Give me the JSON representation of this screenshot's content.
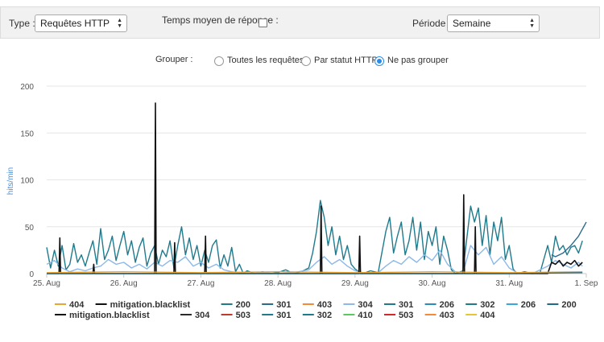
{
  "toolbar": {
    "type_label": "Type :",
    "type_value": "Requêtes HTTP",
    "avg_label": "Temps moyen de réponse :",
    "avg_checked": false,
    "period_label": "Période :",
    "period_value": "Semaine"
  },
  "group": {
    "label": "Grouper :",
    "options": [
      "Toutes les requêtes",
      "Par statut HTTP",
      "Ne pas grouper"
    ],
    "selected": 2
  },
  "chart_data": {
    "type": "line",
    "ylabel": "hits/min",
    "ylim": [
      0,
      200
    ],
    "yticks": [
      0,
      50,
      100,
      150,
      200
    ],
    "xticks": [
      "25. Aug",
      "26. Aug",
      "27. Aug",
      "28. Aug",
      "29. Aug",
      "30. Aug",
      "31. Aug",
      "1. Sep"
    ],
    "xlim_days": [
      0,
      7
    ],
    "grid": "horizontal",
    "legend_position": "bottom",
    "series": [
      {
        "name": "200",
        "color": "#1f7a8c",
        "points": [
          [
            0.0,
            28
          ],
          [
            0.05,
            6
          ],
          [
            0.1,
            25
          ],
          [
            0.15,
            8
          ],
          [
            0.2,
            30
          ],
          [
            0.25,
            4
          ],
          [
            0.3,
            10
          ],
          [
            0.35,
            32
          ],
          [
            0.4,
            12
          ],
          [
            0.45,
            20
          ],
          [
            0.5,
            8
          ],
          [
            0.55,
            22
          ],
          [
            0.6,
            35
          ],
          [
            0.65,
            10
          ],
          [
            0.7,
            48
          ],
          [
            0.75,
            15
          ],
          [
            0.8,
            25
          ],
          [
            0.85,
            40
          ],
          [
            0.9,
            14
          ],
          [
            0.95,
            30
          ],
          [
            1.0,
            45
          ],
          [
            1.05,
            20
          ],
          [
            1.1,
            35
          ],
          [
            1.15,
            12
          ],
          [
            1.2,
            28
          ],
          [
            1.25,
            38
          ],
          [
            1.3,
            8
          ],
          [
            1.35,
            22
          ],
          [
            1.4,
            30
          ],
          [
            1.45,
            10
          ],
          [
            1.5,
            25
          ],
          [
            1.55,
            18
          ],
          [
            1.6,
            35
          ],
          [
            1.65,
            6
          ],
          [
            1.7,
            30
          ],
          [
            1.75,
            50
          ],
          [
            1.8,
            20
          ],
          [
            1.85,
            38
          ],
          [
            1.9,
            15
          ],
          [
            1.95,
            30
          ],
          [
            2.0,
            8
          ],
          [
            2.05,
            25
          ],
          [
            2.1,
            12
          ],
          [
            2.15,
            30
          ],
          [
            2.2,
            36
          ],
          [
            2.25,
            6
          ],
          [
            2.3,
            20
          ],
          [
            2.35,
            8
          ],
          [
            2.4,
            28
          ],
          [
            2.45,
            2
          ],
          [
            2.5,
            10
          ],
          [
            2.55,
            0
          ],
          [
            2.6,
            3
          ],
          [
            2.7,
            0
          ],
          [
            2.8,
            2
          ],
          [
            2.9,
            0
          ],
          [
            3.0,
            1
          ],
          [
            3.1,
            4
          ],
          [
            3.2,
            0
          ],
          [
            3.3,
            2
          ],
          [
            3.4,
            6
          ],
          [
            3.45,
            22
          ],
          [
            3.5,
            45
          ],
          [
            3.55,
            78
          ],
          [
            3.6,
            60
          ],
          [
            3.65,
            30
          ],
          [
            3.7,
            50
          ],
          [
            3.75,
            20
          ],
          [
            3.8,
            40
          ],
          [
            3.85,
            15
          ],
          [
            3.9,
            30
          ],
          [
            3.95,
            10
          ],
          [
            4.0,
            5
          ],
          [
            4.05,
            2
          ],
          [
            4.1,
            0
          ],
          [
            4.2,
            3
          ],
          [
            4.3,
            1
          ],
          [
            4.4,
            45
          ],
          [
            4.45,
            60
          ],
          [
            4.5,
            22
          ],
          [
            4.55,
            40
          ],
          [
            4.6,
            55
          ],
          [
            4.65,
            20
          ],
          [
            4.7,
            35
          ],
          [
            4.75,
            60
          ],
          [
            4.8,
            25
          ],
          [
            4.85,
            55
          ],
          [
            4.9,
            15
          ],
          [
            4.95,
            45
          ],
          [
            5.0,
            30
          ],
          [
            5.05,
            50
          ],
          [
            5.1,
            10
          ],
          [
            5.15,
            40
          ],
          [
            5.2,
            25
          ],
          [
            5.25,
            4
          ],
          [
            5.3,
            0
          ],
          [
            5.4,
            3
          ],
          [
            5.5,
            72
          ],
          [
            5.55,
            55
          ],
          [
            5.6,
            70
          ],
          [
            5.65,
            30
          ],
          [
            5.7,
            62
          ],
          [
            5.75,
            20
          ],
          [
            5.8,
            55
          ],
          [
            5.85,
            35
          ],
          [
            5.9,
            60
          ],
          [
            5.95,
            15
          ],
          [
            6.0,
            30
          ],
          [
            6.05,
            5
          ],
          [
            6.1,
            0
          ],
          [
            6.2,
            2
          ],
          [
            6.3,
            0
          ],
          [
            6.4,
            1
          ],
          [
            6.5,
            30
          ],
          [
            6.55,
            12
          ],
          [
            6.6,
            40
          ],
          [
            6.65,
            25
          ],
          [
            6.7,
            30
          ],
          [
            6.75,
            20
          ],
          [
            6.8,
            28
          ],
          [
            6.85,
            30
          ],
          [
            6.9,
            22
          ],
          [
            6.95,
            35
          ]
        ]
      },
      {
        "name": "200",
        "color": "#2a6b8c",
        "points": [
          [
            6.55,
            20
          ],
          [
            6.6,
            18
          ],
          [
            6.7,
            22
          ],
          [
            6.8,
            30
          ],
          [
            6.9,
            40
          ],
          [
            7.0,
            55
          ]
        ]
      },
      {
        "name": "304",
        "color": "#8db8e8",
        "points": [
          [
            0.0,
            10
          ],
          [
            0.1,
            14
          ],
          [
            0.2,
            6
          ],
          [
            0.3,
            2
          ],
          [
            0.4,
            5
          ],
          [
            0.5,
            3
          ],
          [
            0.6,
            6
          ],
          [
            0.7,
            8
          ],
          [
            0.8,
            15
          ],
          [
            0.9,
            10
          ],
          [
            1.0,
            12
          ],
          [
            1.1,
            6
          ],
          [
            1.2,
            10
          ],
          [
            1.3,
            5
          ],
          [
            1.4,
            12
          ],
          [
            1.5,
            8
          ],
          [
            1.6,
            14
          ],
          [
            1.7,
            12
          ],
          [
            1.8,
            18
          ],
          [
            1.9,
            8
          ],
          [
            2.0,
            12
          ],
          [
            2.1,
            6
          ],
          [
            2.2,
            10
          ],
          [
            2.3,
            4
          ],
          [
            2.4,
            2
          ],
          [
            2.5,
            1
          ],
          [
            2.6,
            0
          ],
          [
            2.8,
            1
          ],
          [
            3.0,
            0
          ],
          [
            3.2,
            1
          ],
          [
            3.4,
            4
          ],
          [
            3.5,
            12
          ],
          [
            3.6,
            18
          ],
          [
            3.7,
            10
          ],
          [
            3.8,
            15
          ],
          [
            3.9,
            8
          ],
          [
            4.0,
            3
          ],
          [
            4.1,
            1
          ],
          [
            4.2,
            0
          ],
          [
            4.3,
            1
          ],
          [
            4.4,
            8
          ],
          [
            4.5,
            14
          ],
          [
            4.6,
            10
          ],
          [
            4.7,
            18
          ],
          [
            4.8,
            12
          ],
          [
            4.9,
            20
          ],
          [
            5.0,
            14
          ],
          [
            5.1,
            25
          ],
          [
            5.2,
            10
          ],
          [
            5.3,
            2
          ],
          [
            5.4,
            1
          ],
          [
            5.5,
            30
          ],
          [
            5.6,
            20
          ],
          [
            5.7,
            28
          ],
          [
            5.8,
            10
          ],
          [
            5.9,
            18
          ],
          [
            6.0,
            6
          ],
          [
            6.1,
            1
          ],
          [
            6.3,
            0
          ],
          [
            6.5,
            8
          ],
          [
            6.6,
            14
          ],
          [
            6.7,
            10
          ],
          [
            6.8,
            6
          ],
          [
            6.9,
            12
          ],
          [
            6.95,
            8
          ]
        ]
      },
      {
        "name": "mitigation.blacklist",
        "color": "#111111",
        "points": [
          [
            0.0,
            0
          ],
          [
            0.16,
            0
          ],
          [
            0.17,
            38
          ],
          [
            0.18,
            0
          ],
          [
            0.6,
            0
          ],
          [
            0.61,
            10
          ],
          [
            0.62,
            0
          ],
          [
            1.0,
            0
          ],
          [
            1.4,
            0
          ],
          [
            1.41,
            182
          ],
          [
            1.42,
            0
          ],
          [
            1.65,
            0
          ],
          [
            1.66,
            33
          ],
          [
            1.67,
            0
          ],
          [
            2.0,
            0
          ],
          [
            2.05,
            0
          ],
          [
            2.06,
            40
          ],
          [
            2.07,
            0
          ],
          [
            3.0,
            0
          ],
          [
            3.55,
            0
          ],
          [
            3.56,
            72
          ],
          [
            3.57,
            0
          ],
          [
            4.0,
            0
          ],
          [
            4.05,
            0
          ],
          [
            4.06,
            40
          ],
          [
            4.07,
            0
          ],
          [
            5.0,
            0
          ],
          [
            5.4,
            0
          ],
          [
            5.41,
            84
          ],
          [
            5.42,
            0
          ],
          [
            5.55,
            0
          ],
          [
            5.56,
            50
          ],
          [
            5.57,
            0
          ],
          [
            6.0,
            0
          ],
          [
            6.5,
            0
          ],
          [
            6.55,
            12
          ],
          [
            6.6,
            10
          ],
          [
            6.65,
            14
          ],
          [
            6.7,
            8
          ],
          [
            6.75,
            12
          ],
          [
            6.8,
            10
          ],
          [
            6.85,
            14
          ],
          [
            6.9,
            8
          ],
          [
            6.95,
            12
          ]
        ]
      },
      {
        "name": "404",
        "color": "#e8a534",
        "points": [
          [
            0.0,
            1
          ],
          [
            1.0,
            2
          ],
          [
            2.0,
            1
          ],
          [
            3.0,
            2
          ],
          [
            4.0,
            1
          ],
          [
            5.0,
            2
          ],
          [
            6.0,
            1
          ],
          [
            6.95,
            2
          ]
        ]
      },
      {
        "name": "301",
        "color": "#2b6a8d",
        "points": [
          [
            0.0,
            0
          ],
          [
            1.0,
            0
          ],
          [
            2.0,
            0
          ],
          [
            3.0,
            0
          ],
          [
            4.0,
            0
          ],
          [
            5.0,
            0
          ],
          [
            6.0,
            0
          ],
          [
            6.95,
            1
          ]
        ]
      }
    ]
  },
  "legend": [
    {
      "label": "404",
      "color": "#e8a534"
    },
    {
      "label": "mitigation.blacklist",
      "color": "#111111"
    },
    {
      "label": "200",
      "color": "#1f7a8c"
    },
    {
      "label": "301",
      "color": "#2b6a8d"
    },
    {
      "label": "403",
      "color": "#f08b3e"
    },
    {
      "label": "304",
      "color": "#8db8e8"
    },
    {
      "label": "301",
      "color": "#1f7a8c"
    },
    {
      "label": "206",
      "color": "#2a8cb8"
    },
    {
      "label": "302",
      "color": "#1f7a8c"
    },
    {
      "label": "206",
      "color": "#35a8d8"
    },
    {
      "label": "200",
      "color": "#1f6b8c"
    },
    {
      "label": "mitigation.blacklist",
      "color": "#111111"
    },
    {
      "label": "304",
      "color": "#2b2b2b"
    },
    {
      "label": "503",
      "color": "#c0392b"
    },
    {
      "label": "301",
      "color": "#1f7a8c"
    },
    {
      "label": "302",
      "color": "#1f7a8c"
    },
    {
      "label": "410",
      "color": "#5cc95c"
    },
    {
      "label": "503",
      "color": "#d62728"
    },
    {
      "label": "403",
      "color": "#f08b3e"
    },
    {
      "label": "404",
      "color": "#e8c534"
    }
  ]
}
